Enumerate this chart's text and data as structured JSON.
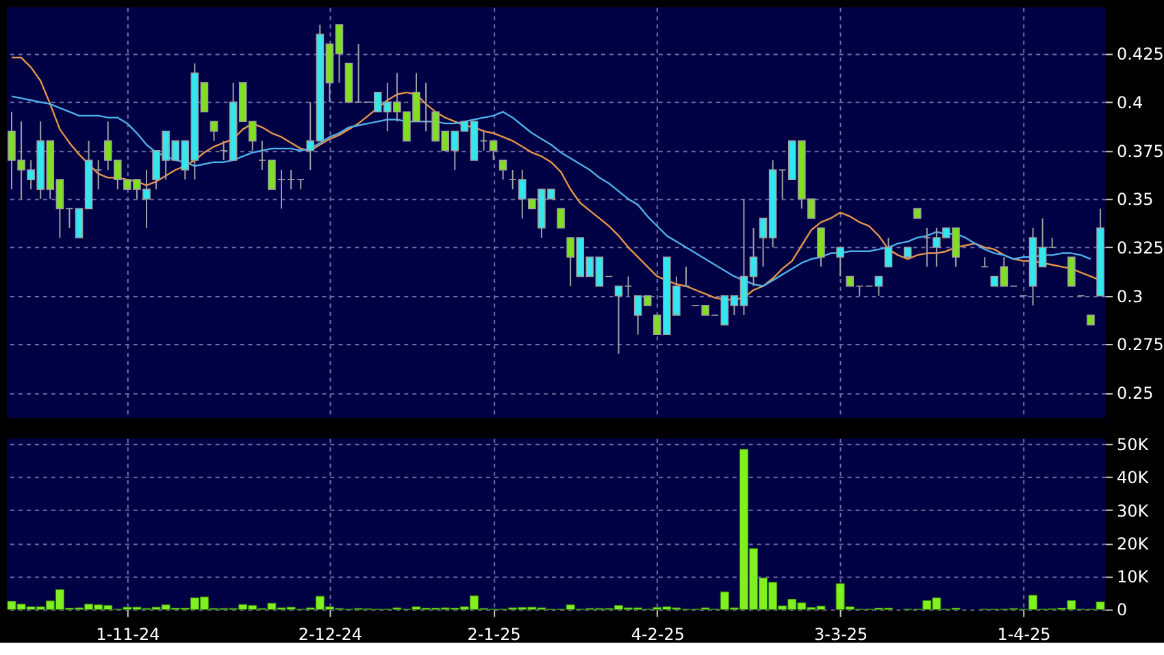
{
  "chart_data": [
    {
      "type": "candlestick",
      "categories": [
        null,
        null,
        null,
        null,
        null,
        null,
        null,
        null,
        null,
        null,
        null,
        null,
        null,
        null,
        null,
        null,
        null,
        null,
        null,
        null,
        null,
        null,
        null,
        null,
        null,
        null,
        null,
        null,
        null,
        null,
        null,
        null,
        null,
        null,
        null,
        null,
        null,
        null,
        null,
        null,
        null,
        null,
        null,
        null,
        null,
        null,
        null,
        null,
        null,
        null,
        null,
        null,
        null,
        null,
        null,
        null,
        null,
        null,
        null,
        null,
        null,
        null,
        null,
        null,
        null,
        null,
        null,
        null,
        null,
        null,
        null,
        null,
        null,
        null,
        null,
        null,
        null,
        null,
        null,
        null,
        null,
        null,
        null,
        null,
        null,
        null,
        null,
        null,
        null,
        null,
        null,
        null,
        null,
        null,
        null,
        null,
        null,
        null,
        null,
        null,
        null,
        null,
        null,
        null,
        null,
        null,
        null,
        null,
        null,
        null,
        null,
        null,
        null,
        null
      ],
      "ohlc": [
        [
          0.385,
          0.395,
          0.355,
          0.37
        ],
        [
          0.37,
          0.39,
          0.35,
          0.365
        ],
        [
          0.36,
          0.37,
          0.355,
          0.365
        ],
        [
          0.355,
          0.39,
          0.35,
          0.38
        ],
        [
          0.38,
          0.38,
          0.35,
          0.355
        ],
        [
          0.36,
          0.36,
          0.33,
          0.345
        ],
        [
          0.345,
          0.345,
          0.335,
          0.345
        ],
        [
          0.33,
          0.345,
          0.33,
          0.345
        ],
        [
          0.345,
          0.38,
          0.345,
          0.37
        ],
        [
          0.365,
          0.37,
          0.355,
          0.365
        ],
        [
          0.38,
          0.39,
          0.365,
          0.37
        ],
        [
          0.37,
          0.37,
          0.355,
          0.36
        ],
        [
          0.36,
          0.36,
          0.355,
          0.355
        ],
        [
          0.36,
          0.36,
          0.35,
          0.355
        ],
        [
          0.35,
          0.365,
          0.335,
          0.355
        ],
        [
          0.36,
          0.375,
          0.355,
          0.375
        ],
        [
          0.37,
          0.385,
          0.36,
          0.385
        ],
        [
          0.37,
          0.38,
          0.37,
          0.38
        ],
        [
          0.365,
          0.38,
          0.36,
          0.38
        ],
        [
          0.37,
          0.42,
          0.36,
          0.415
        ],
        [
          0.41,
          0.41,
          0.395,
          0.395
        ],
        [
          0.39,
          0.39,
          0.38,
          0.385
        ],
        [
          0.375,
          0.38,
          0.37,
          0.375
        ],
        [
          0.37,
          0.41,
          0.37,
          0.4
        ],
        [
          0.41,
          0.41,
          0.39,
          0.39
        ],
        [
          0.39,
          0.39,
          0.375,
          0.38
        ],
        [
          0.37,
          0.38,
          0.365,
          0.37
        ],
        [
          0.37,
          0.37,
          0.355,
          0.355
        ],
        [
          0.36,
          0.365,
          0.345,
          0.36
        ],
        [
          0.36,
          0.365,
          0.355,
          0.36
        ],
        [
          0.36,
          0.36,
          0.355,
          0.36
        ],
        [
          0.375,
          0.4,
          0.365,
          0.38
        ],
        [
          0.38,
          0.44,
          0.38,
          0.435
        ],
        [
          0.43,
          0.43,
          0.4,
          0.41
        ],
        [
          0.44,
          0.44,
          0.41,
          0.425
        ],
        [
          0.42,
          0.42,
          0.4,
          0.4
        ],
        [
          0.4,
          0.43,
          0.4,
          0.4
        ],
        [
          0.4,
          0.4,
          0.4,
          0.4
        ],
        [
          0.395,
          0.405,
          0.395,
          0.405
        ],
        [
          0.395,
          0.41,
          0.385,
          0.4
        ],
        [
          0.4,
          0.415,
          0.39,
          0.395
        ],
        [
          0.395,
          0.395,
          0.38,
          0.38
        ],
        [
          0.405,
          0.415,
          0.39,
          0.39
        ],
        [
          0.39,
          0.41,
          0.385,
          0.39
        ],
        [
          0.395,
          0.395,
          0.38,
          0.38
        ],
        [
          0.385,
          0.385,
          0.375,
          0.375
        ],
        [
          0.375,
          0.385,
          0.365,
          0.385
        ],
        [
          0.385,
          0.39,
          0.385,
          0.39
        ],
        [
          0.37,
          0.39,
          0.37,
          0.39
        ],
        [
          0.38,
          0.385,
          0.375,
          0.38
        ],
        [
          0.38,
          0.38,
          0.37,
          0.375
        ],
        [
          0.37,
          0.37,
          0.36,
          0.365
        ],
        [
          0.36,
          0.365,
          0.355,
          0.36
        ],
        [
          0.35,
          0.365,
          0.34,
          0.36
        ],
        [
          0.35,
          0.35,
          0.345,
          0.345
        ],
        [
          0.335,
          0.355,
          0.33,
          0.355
        ],
        [
          0.35,
          0.355,
          0.35,
          0.355
        ],
        [
          0.345,
          0.345,
          0.335,
          0.335
        ],
        [
          0.33,
          0.33,
          0.305,
          0.32
        ],
        [
          0.31,
          0.33,
          0.31,
          0.33
        ],
        [
          0.31,
          0.32,
          0.31,
          0.32
        ],
        [
          0.305,
          0.32,
          0.305,
          0.32
        ],
        [
          0.31,
          0.31,
          0.31,
          0.31
        ],
        [
          0.3,
          0.305,
          0.27,
          0.305
        ],
        [
          0.305,
          0.31,
          0.3,
          0.305
        ],
        [
          0.29,
          0.3,
          0.28,
          0.3
        ],
        [
          0.3,
          0.3,
          0.295,
          0.295
        ],
        [
          0.29,
          0.29,
          0.28,
          0.28
        ],
        [
          0.28,
          0.32,
          0.28,
          0.32
        ],
        [
          0.29,
          0.31,
          0.29,
          0.305
        ],
        [
          0.305,
          0.315,
          0.305,
          0.305
        ],
        [
          0.295,
          0.295,
          0.295,
          0.295
        ],
        [
          0.295,
          0.295,
          0.29,
          0.29
        ],
        [
          0.29,
          0.29,
          0.29,
          0.29
        ],
        [
          0.285,
          0.3,
          0.285,
          0.3
        ],
        [
          0.295,
          0.3,
          0.29,
          0.3
        ],
        [
          0.295,
          0.35,
          0.29,
          0.31
        ],
        [
          0.31,
          0.335,
          0.305,
          0.32
        ],
        [
          0.33,
          0.34,
          0.315,
          0.34
        ],
        [
          0.33,
          0.37,
          0.325,
          0.365
        ],
        [
          0.365,
          0.365,
          0.35,
          0.365
        ],
        [
          0.36,
          0.38,
          0.36,
          0.38
        ],
        [
          0.38,
          0.38,
          0.345,
          0.35
        ],
        [
          0.35,
          0.35,
          0.34,
          0.34
        ],
        [
          0.335,
          0.335,
          0.315,
          0.32
        ],
        null,
        [
          0.32,
          0.325,
          0.31,
          0.325
        ],
        [
          0.31,
          0.31,
          0.305,
          0.305
        ],
        [
          0.305,
          0.305,
          0.3,
          0.305
        ],
        [
          0.305,
          0.305,
          0.305,
          0.305
        ],
        [
          0.305,
          0.31,
          0.3,
          0.31
        ],
        [
          0.315,
          0.33,
          0.315,
          0.325
        ],
        null,
        [
          0.32,
          0.325,
          0.32,
          0.325
        ],
        [
          0.345,
          0.345,
          0.34,
          0.34
        ],
        [
          0.33,
          0.335,
          0.315,
          0.33
        ],
        [
          0.325,
          0.335,
          0.315,
          0.33
        ],
        [
          0.33,
          0.335,
          0.33,
          0.335
        ],
        [
          0.335,
          0.335,
          0.315,
          0.32
        ],
        null,
        null,
        [
          0.315,
          0.32,
          0.315,
          0.315
        ],
        [
          0.305,
          0.31,
          0.305,
          0.31
        ],
        [
          0.315,
          0.32,
          0.305,
          0.305
        ],
        [
          0.305,
          0.305,
          0.305,
          0.305
        ],
        [
          0.3,
          0.3,
          0.3,
          0.3
        ],
        [
          0.305,
          0.335,
          0.295,
          0.33
        ],
        [
          0.315,
          0.34,
          0.315,
          0.325
        ],
        [
          0.325,
          0.33,
          0.325,
          0.325
        ],
        null,
        [
          0.32,
          0.32,
          0.305,
          0.305
        ],
        [
          0.3,
          0.3,
          0.3,
          0.3
        ],
        [
          0.29,
          0.29,
          0.285,
          0.285
        ],
        [
          0.3,
          0.345,
          0.3,
          0.335
        ]
      ],
      "colors": [
        "#80e020",
        "#80e020",
        "#33e6f0",
        "#33e6f0",
        "#80e020",
        "#80e020",
        "#a0a0a0",
        "#33e6f0",
        "#33e6f0",
        "#a0a0a0",
        "#80e020",
        "#80e020",
        "#80e020",
        "#80e020",
        "#33e6f0",
        "#33e6f0",
        "#33e6f0",
        "#33e6f0",
        "#33e6f0",
        "#33e6f0",
        "#80e020",
        "#80e020",
        "#a0a0a0",
        "#33e6f0",
        "#80e020",
        "#80e020",
        "#a0a0a0",
        "#80e020",
        "#a0a0a0",
        "#a0a0a0",
        "#a0a0a0",
        "#33e6f0",
        "#33e6f0",
        "#80e020",
        "#80e020",
        "#80e020",
        "#a0a0a0",
        "#a0a0a0",
        "#33e6f0",
        "#33e6f0",
        "#80e020",
        "#80e020",
        "#80e020",
        "#a0a0a0",
        "#80e020",
        "#80e020",
        "#33e6f0",
        "#33e6f0",
        "#33e6f0",
        "#a0a0a0",
        "#80e020",
        "#80e020",
        "#a0a0a0",
        "#33e6f0",
        "#80e020",
        "#33e6f0",
        "#33e6f0",
        "#80e020",
        "#80e020",
        "#33e6f0",
        "#33e6f0",
        "#33e6f0",
        "#a0a0a0",
        "#33e6f0",
        "#a0a0a0",
        "#33e6f0",
        "#80e020",
        "#80e020",
        "#33e6f0",
        "#33e6f0",
        "#a0a0a0",
        "#a0a0a0",
        "#80e020",
        "#a0a0a0",
        "#33e6f0",
        "#33e6f0",
        "#33e6f0",
        "#33e6f0",
        "#33e6f0",
        "#33e6f0",
        "#a0a0a0",
        "#33e6f0",
        "#80e020",
        "#80e020",
        "#80e020",
        null,
        "#33e6f0",
        "#80e020",
        "#a0a0a0",
        "#a0a0a0",
        "#33e6f0",
        "#33e6f0",
        null,
        "#33e6f0",
        "#80e020",
        "#a0a0a0",
        "#33e6f0",
        "#33e6f0",
        "#80e020",
        null,
        null,
        "#a0a0a0",
        "#33e6f0",
        "#80e020",
        "#a0a0a0",
        "#a0a0a0",
        "#33e6f0",
        "#33e6f0",
        "#a0a0a0",
        null,
        "#80e020",
        "#a0a0a0",
        "#80e020",
        "#33e6f0"
      ],
      "series": [
        {
          "type": "line",
          "color": "#e8964a",
          "values": [
            0.423,
            0.423,
            0.418,
            0.411,
            0.399,
            0.386,
            0.379,
            0.373,
            0.368,
            0.363,
            0.361,
            0.361,
            0.36,
            0.359,
            0.357,
            0.359,
            0.362,
            0.365,
            0.367,
            0.37,
            0.374,
            0.377,
            0.379,
            0.381,
            0.386,
            0.389,
            0.387,
            0.384,
            0.382,
            0.379,
            0.376,
            0.375,
            0.378,
            0.381,
            0.383,
            0.386,
            0.389,
            0.393,
            0.397,
            0.401,
            0.404,
            0.405,
            0.404,
            0.399,
            0.395,
            0.392,
            0.39,
            0.388,
            0.387,
            0.385,
            0.384,
            0.382,
            0.38,
            0.377,
            0.374,
            0.372,
            0.369,
            0.364,
            0.355,
            0.348,
            0.344,
            0.34,
            0.336,
            0.331,
            0.325,
            0.32,
            0.315,
            0.31,
            0.308,
            0.306,
            0.305,
            0.303,
            0.301,
            0.299,
            0.298,
            0.298,
            0.299,
            0.303,
            0.305,
            0.309,
            0.314,
            0.318,
            0.326,
            0.334,
            0.338,
            0.34,
            0.343,
            0.341,
            0.338,
            0.336,
            0.331,
            0.324,
            0.321,
            0.319,
            0.321,
            0.322,
            0.322,
            0.323,
            0.325,
            0.326,
            0.327,
            0.325,
            0.324,
            0.321,
            0.319,
            0.318,
            0.318,
            0.317,
            0.316,
            0.315,
            0.314,
            0.312,
            0.31,
            0.308
          ]
        },
        {
          "type": "line",
          "color": "#4fb0ea",
          "values": [
            0.403,
            0.402,
            0.401,
            0.4,
            0.399,
            0.397,
            0.395,
            0.393,
            0.393,
            0.393,
            0.392,
            0.392,
            0.389,
            0.384,
            0.378,
            0.374,
            0.372,
            0.37,
            0.369,
            0.367,
            0.368,
            0.369,
            0.369,
            0.37,
            0.372,
            0.374,
            0.375,
            0.376,
            0.376,
            0.376,
            0.375,
            0.376,
            0.379,
            0.382,
            0.384,
            0.387,
            0.388,
            0.389,
            0.39,
            0.391,
            0.391,
            0.39,
            0.39,
            0.39,
            0.39,
            0.389,
            0.389,
            0.39,
            0.391,
            0.392,
            0.393,
            0.395,
            0.392,
            0.388,
            0.384,
            0.381,
            0.378,
            0.374,
            0.371,
            0.368,
            0.365,
            0.361,
            0.358,
            0.354,
            0.35,
            0.347,
            0.341,
            0.336,
            0.331,
            0.328,
            0.325,
            0.322,
            0.319,
            0.316,
            0.313,
            0.31,
            0.308,
            0.306,
            0.305,
            0.308,
            0.311,
            0.314,
            0.317,
            0.319,
            0.32,
            0.322,
            0.322,
            0.323,
            0.323,
            0.323,
            0.324,
            0.325,
            0.327,
            0.328,
            0.33,
            0.331,
            0.333,
            0.332,
            0.332,
            0.33,
            0.327,
            0.324,
            0.322,
            0.321,
            0.319,
            0.32,
            0.32,
            0.321,
            0.321,
            0.322,
            0.322,
            0.321,
            0.319,
            null
          ]
        }
      ],
      "ylim": [
        0.237,
        0.449
      ],
      "yticks": [
        0.25,
        0.275,
        0.3,
        0.325,
        0.35,
        0.375,
        0.4,
        0.425
      ],
      "grid": true,
      "tick_labels": "y"
    },
    {
      "type": "bar",
      "color": "#80f020",
      "categories": [
        null,
        null,
        null,
        null,
        null,
        null,
        null,
        null,
        null,
        null,
        null,
        null,
        "1-11-24",
        null,
        null,
        null,
        null,
        null,
        null,
        null,
        null,
        null,
        null,
        null,
        null,
        null,
        null,
        null,
        null,
        null,
        null,
        null,
        null,
        "2-12-24",
        null,
        null,
        null,
        null,
        null,
        null,
        null,
        null,
        null,
        null,
        null,
        null,
        null,
        null,
        null,
        null,
        "2-1-25",
        null,
        null,
        null,
        null,
        null,
        null,
        null,
        null,
        null,
        null,
        null,
        null,
        null,
        null,
        null,
        null,
        "4-2-25",
        null,
        null,
        null,
        null,
        null,
        null,
        null,
        null,
        null,
        null,
        null,
        null,
        null,
        null,
        null,
        null,
        null,
        null,
        "3-3-25",
        null,
        null,
        null,
        null,
        null,
        null,
        null,
        null,
        null,
        null,
        null,
        null,
        null,
        null,
        null,
        null,
        null,
        null,
        "1-4-25",
        null,
        null,
        null,
        null,
        null,
        null,
        null,
        null
      ],
      "values": [
        2500,
        1600,
        800,
        800,
        2600,
        6000,
        400,
        500,
        1600,
        1400,
        1200,
        100,
        700,
        700,
        300,
        700,
        1400,
        400,
        400,
        3500,
        3800,
        300,
        300,
        300,
        1500,
        1200,
        300,
        1900,
        500,
        700,
        100,
        500,
        4000,
        800,
        300,
        100,
        300,
        200,
        100,
        100,
        500,
        100,
        800,
        400,
        400,
        500,
        400,
        800,
        4100,
        300,
        100,
        100,
        500,
        600,
        700,
        500,
        100,
        100,
        1400,
        100,
        300,
        300,
        300,
        1200,
        500,
        500,
        100,
        600,
        800,
        500,
        100,
        100,
        500,
        100,
        5300,
        500,
        48400,
        18400,
        9500,
        8200,
        1100,
        3100,
        2000,
        600,
        1000,
        null,
        7800,
        800,
        100,
        100,
        400,
        400,
        null,
        100,
        100,
        2700,
        3500,
        100,
        400,
        null,
        null,
        100,
        100,
        100,
        300,
        100,
        4300,
        100,
        200,
        400,
        2700,
        100,
        100,
        2300
      ],
      "ylim": [
        0,
        51700
      ],
      "yticks": [
        0,
        {
          "value": 10000,
          "label": "10K"
        },
        {
          "value": 20000,
          "label": "20K"
        },
        {
          "value": 30000,
          "label": "30K"
        },
        {
          "value": 40000,
          "label": "40K"
        },
        {
          "value": 50000,
          "label": "50K"
        }
      ],
      "grid": true
    }
  ]
}
